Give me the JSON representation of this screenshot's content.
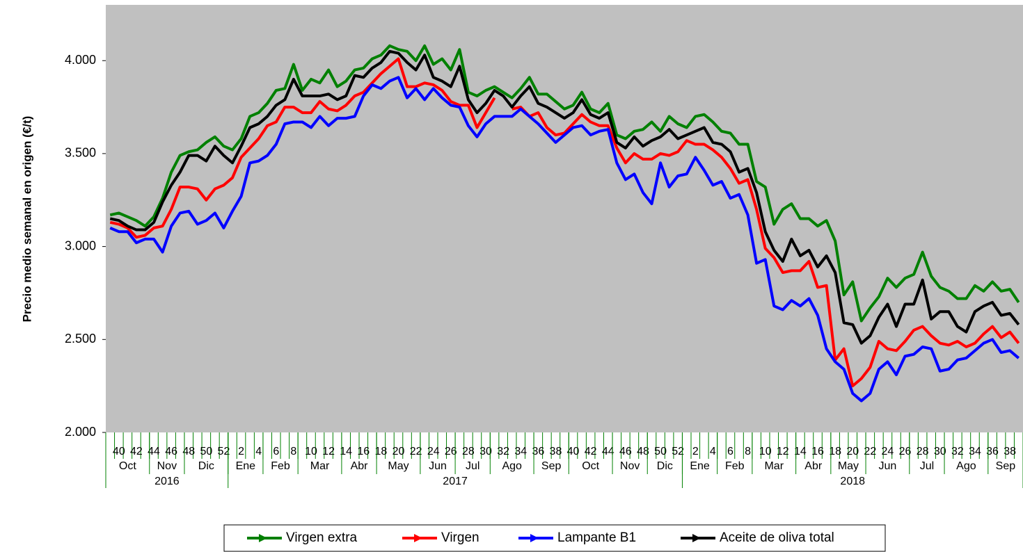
{
  "chart_data": {
    "type": "line",
    "y_label": "Precio medio semanal en origen (€/t)",
    "ylim": [
      2000,
      4300
    ],
    "yticks": [
      {
        "value": 2000,
        "label": "2.000"
      },
      {
        "value": 2500,
        "label": "2.500"
      },
      {
        "value": 3000,
        "label": "3.000"
      },
      {
        "value": 3500,
        "label": "3.500"
      },
      {
        "value": 4000,
        "label": "4.000"
      }
    ],
    "grid": false,
    "plot_background": "#c0c0c0",
    "axis_color": "#008000",
    "categories": [
      null,
      "40",
      null,
      "42",
      null,
      "44",
      null,
      "46",
      null,
      "48",
      null,
      "50",
      null,
      "52",
      null,
      "2",
      null,
      "4",
      null,
      "6",
      null,
      "8",
      null,
      "10",
      null,
      "12",
      null,
      "14",
      null,
      "16",
      null,
      "18",
      null,
      "20",
      null,
      "22",
      null,
      "24",
      null,
      "26",
      null,
      "28",
      null,
      "30",
      null,
      "32",
      null,
      "34",
      null,
      "36",
      null,
      "38",
      null,
      "40",
      null,
      "42",
      null,
      "44",
      null,
      "46",
      null,
      "48",
      null,
      "50",
      null,
      "52",
      null,
      "2",
      null,
      "4",
      null,
      "6",
      null,
      "8",
      null,
      "10",
      null,
      "12",
      null,
      "14",
      null,
      "16",
      null,
      "18",
      null,
      "20",
      null,
      "22",
      null,
      "24",
      null,
      "26",
      null,
      "28",
      null,
      "30",
      null,
      "32",
      null,
      "34",
      null,
      "36",
      null,
      "38",
      null
    ],
    "months": [
      {
        "label": "Oct",
        "weeks": 5
      },
      {
        "label": "Nov",
        "weeks": 4
      },
      {
        "label": "Dic",
        "weeks": 5
      },
      {
        "label": "Ene",
        "weeks": 4
      },
      {
        "label": "Feb",
        "weeks": 4
      },
      {
        "label": "Mar",
        "weeks": 5
      },
      {
        "label": "Abr",
        "weeks": 4
      },
      {
        "label": "May",
        "weeks": 5
      },
      {
        "label": "Jun",
        "weeks": 4
      },
      {
        "label": "Jul",
        "weeks": 4
      },
      {
        "label": "Ago",
        "weeks": 5
      },
      {
        "label": "Sep",
        "weeks": 4
      },
      {
        "label": "Oct",
        "weeks": 5
      },
      {
        "label": "Nov",
        "weeks": 4
      },
      {
        "label": "Dic",
        "weeks": 4
      },
      {
        "label": "Ene",
        "weeks": 4
      },
      {
        "label": "Feb",
        "weeks": 4
      },
      {
        "label": "Mar",
        "weeks": 5
      },
      {
        "label": "Abr",
        "weeks": 4
      },
      {
        "label": "May",
        "weeks": 4
      },
      {
        "label": "Jun",
        "weeks": 5
      },
      {
        "label": "Jul",
        "weeks": 4
      },
      {
        "label": "Ago",
        "weeks": 5
      },
      {
        "label": "Sep",
        "weeks": 4
      }
    ],
    "years": [
      {
        "label": "2016",
        "weeks": 14
      },
      {
        "label": "2017",
        "weeks": 52
      },
      {
        "label": "2018",
        "weeks": 39
      }
    ],
    "series": [
      {
        "name": "Virgen extra",
        "color": "#008000",
        "values": [
          3170,
          3180,
          3160,
          3140,
          3110,
          3160,
          3260,
          3400,
          3490,
          3510,
          3520,
          3560,
          3590,
          3540,
          3520,
          3580,
          3700,
          3720,
          3770,
          3840,
          3850,
          3980,
          3840,
          3900,
          3880,
          3950,
          3860,
          3890,
          3950,
          3960,
          4010,
          4030,
          4080,
          4060,
          4050,
          4000,
          4080,
          3980,
          4010,
          3950,
          4060,
          3830,
          3810,
          3840,
          3860,
          3830,
          3800,
          3850,
          3910,
          3820,
          3820,
          3780,
          3740,
          3760,
          3830,
          3740,
          3720,
          3770,
          3600,
          3580,
          3620,
          3630,
          3670,
          3620,
          3700,
          3660,
          3640,
          3700,
          3710,
          3670,
          3620,
          3610,
          3550,
          3550,
          3350,
          3320,
          3120,
          3200,
          3230,
          3150,
          3150,
          3110,
          3140,
          3030,
          2740,
          2810,
          2600,
          2670,
          2730,
          2830,
          2780,
          2830,
          2850,
          2970,
          2840,
          2780,
          2760,
          2720,
          2720,
          2790,
          2760,
          2810,
          2760,
          2770,
          2700
        ]
      },
      {
        "name": "Virgen",
        "color": "#ff0000",
        "values": [
          3130,
          3120,
          3100,
          3050,
          3060,
          3100,
          3110,
          3200,
          3320,
          3320,
          3310,
          3250,
          3310,
          3330,
          3370,
          3480,
          3530,
          3580,
          3650,
          3670,
          3750,
          3750,
          3720,
          3720,
          3780,
          3740,
          3730,
          3760,
          3810,
          3830,
          3880,
          3930,
          3970,
          4010,
          3860,
          3860,
          3880,
          3870,
          3840,
          3780,
          3760,
          3760,
          3640,
          3720,
          3800,
          null,
          3740,
          3750,
          3700,
          3720,
          3640,
          3600,
          3610,
          3660,
          3710,
          3670,
          3650,
          3650,
          3530,
          3450,
          3500,
          3470,
          3470,
          3500,
          3490,
          3510,
          3570,
          3550,
          3550,
          3520,
          3480,
          3420,
          3340,
          3360,
          3200,
          2990,
          2940,
          2860,
          2870,
          2870,
          2920,
          2780,
          2790,
          2390,
          2450,
          2250,
          2290,
          2350,
          2490,
          2450,
          2440,
          2490,
          2550,
          2570,
          2520,
          2480,
          2470,
          2490,
          2460,
          2480,
          2530,
          2570,
          2510,
          2540,
          2480
        ]
      },
      {
        "name": "Lampante B1",
        "color": "#0000ff",
        "values": [
          3100,
          3080,
          3080,
          3020,
          3040,
          3040,
          2970,
          3110,
          3180,
          3190,
          3120,
          3140,
          3180,
          3100,
          3190,
          3270,
          3450,
          3460,
          3490,
          3550,
          3660,
          3670,
          3670,
          3640,
          3700,
          3650,
          3690,
          3690,
          3700,
          3810,
          3870,
          3850,
          3890,
          3910,
          3800,
          3850,
          3790,
          3850,
          3800,
          3760,
          3750,
          3650,
          3590,
          3660,
          3700,
          3700,
          3700,
          3740,
          3700,
          3660,
          3610,
          3560,
          3600,
          3640,
          3650,
          3600,
          3620,
          3630,
          3450,
          3360,
          3390,
          3290,
          3230,
          3450,
          3320,
          3380,
          3390,
          3480,
          3410,
          3330,
          3350,
          3260,
          3280,
          3170,
          2910,
          2930,
          2680,
          2660,
          2710,
          2680,
          2720,
          2630,
          2450,
          2380,
          2340,
          2210,
          2170,
          2210,
          2340,
          2380,
          2310,
          2410,
          2420,
          2460,
          2450,
          2330,
          2340,
          2390,
          2400,
          2440,
          2480,
          2500,
          2430,
          2440,
          2400
        ]
      },
      {
        "name": "Aceite de oliva total",
        "color": "#000000",
        "values": [
          3150,
          3140,
          3110,
          3090,
          3090,
          3130,
          3240,
          3330,
          3400,
          3490,
          3490,
          3460,
          3540,
          3490,
          3450,
          3540,
          3640,
          3660,
          3700,
          3760,
          3790,
          3900,
          3810,
          3810,
          3810,
          3820,
          3790,
          3810,
          3920,
          3910,
          3960,
          3990,
          4050,
          4040,
          3990,
          3950,
          4030,
          3910,
          3890,
          3860,
          3970,
          3790,
          3720,
          3770,
          3840,
          3810,
          3750,
          3810,
          3860,
          3770,
          3750,
          3720,
          3690,
          3720,
          3790,
          3710,
          3690,
          3720,
          3560,
          3530,
          3590,
          3540,
          3570,
          3590,
          3630,
          3580,
          3600,
          3620,
          3640,
          3560,
          3550,
          3510,
          3400,
          3420,
          3290,
          3080,
          2980,
          2920,
          3040,
          2950,
          2980,
          2890,
          2950,
          2860,
          2590,
          2580,
          2480,
          2520,
          2620,
          2690,
          2570,
          2690,
          2690,
          2820,
          2610,
          2650,
          2650,
          2570,
          2540,
          2650,
          2680,
          2700,
          2630,
          2640,
          2580
        ]
      }
    ]
  }
}
